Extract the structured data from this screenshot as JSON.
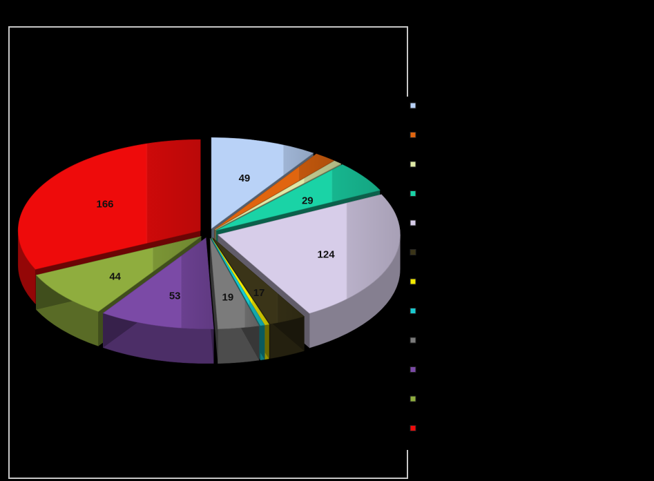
{
  "chart_data": {
    "type": "pie",
    "title": "",
    "legend_position": "right",
    "slices": [
      {
        "value": 49,
        "label": "49",
        "color": "#b9d2f7"
      },
      {
        "value": 10,
        "label": "",
        "color": "#e0650f"
      },
      {
        "value": 4,
        "label": "",
        "color": "#dfe9a6"
      },
      {
        "value": 29,
        "label": "29",
        "color": "#1ad3a6"
      },
      {
        "value": 124,
        "label": "124",
        "color": "#d7cde9"
      },
      {
        "value": 17,
        "label": "17",
        "color": "#3a3418"
      },
      {
        "value": 2,
        "label": "",
        "color": "#f2ea00"
      },
      {
        "value": 2,
        "label": "",
        "color": "#19c9cf"
      },
      {
        "value": 19,
        "label": "19",
        "color": "#7b7b7b"
      },
      {
        "value": 53,
        "label": "53",
        "color": "#7b4aa6"
      },
      {
        "value": 44,
        "label": "44",
        "color": "#8fad3e"
      },
      {
        "value": 166,
        "label": "166",
        "color": "#ee0b0b"
      }
    ]
  }
}
